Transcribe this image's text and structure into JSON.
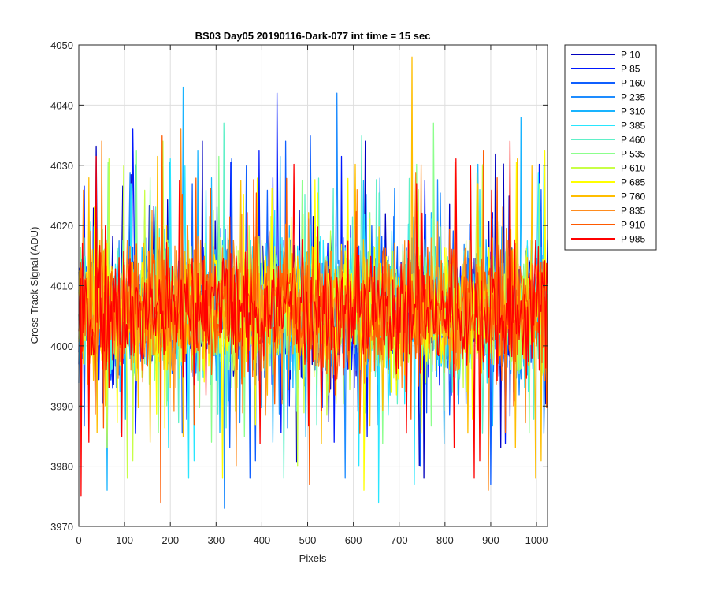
{
  "chart_data": {
    "type": "line",
    "title": "BS03 Day05 20190116-Dark-077 int time = 15 sec",
    "xlabel": "Pixels",
    "ylabel": "Cross Track Signal (ADU)",
    "xlim": [
      0,
      1024
    ],
    "ylim": [
      3970,
      4050
    ],
    "x_ticks": [
      0,
      100,
      200,
      300,
      400,
      500,
      600,
      700,
      800,
      900,
      1000
    ],
    "y_ticks": [
      3970,
      3980,
      3990,
      4000,
      4010,
      4020,
      4030,
      4040,
      4050
    ],
    "grid": true,
    "legend_position": "outside-right",
    "noise_mean": 4006,
    "series": [
      {
        "name": "P 10",
        "color": "#0000bf"
      },
      {
        "name": "P 85",
        "color": "#0017ff"
      },
      {
        "name": "P 160",
        "color": "#0f5fff"
      },
      {
        "name": "P 235",
        "color": "#1e8cff"
      },
      {
        "name": "P 310",
        "color": "#19b4ff"
      },
      {
        "name": "P 385",
        "color": "#28e6ff"
      },
      {
        "name": "P 460",
        "color": "#5ff0c8"
      },
      {
        "name": "P 535",
        "color": "#8cff8c"
      },
      {
        "name": "P 610",
        "color": "#c8ff46"
      },
      {
        "name": "P 685",
        "color": "#ffff00"
      },
      {
        "name": "P 760",
        "color": "#ffbe00"
      },
      {
        "name": "P 835",
        "color": "#ff8c1e"
      },
      {
        "name": "P 910",
        "color": "#ff5a00"
      },
      {
        "name": "P 985",
        "color": "#ff0000"
      }
    ],
    "peaks": [
      {
        "series": "P 760",
        "x": 728,
        "y": 4048
      },
      {
        "series": "P 310",
        "x": 228,
        "y": 4043
      },
      {
        "series": "P 85",
        "x": 433,
        "y": 4042
      },
      {
        "series": "P 235",
        "x": 564,
        "y": 4042
      },
      {
        "series": "P 460",
        "x": 317,
        "y": 4037
      },
      {
        "series": "P 310",
        "x": 966,
        "y": 4038
      },
      {
        "series": "P 85",
        "x": 118,
        "y": 4036
      },
      {
        "series": "P 910",
        "x": 182,
        "y": 4035
      },
      {
        "series": "P 835",
        "x": 223,
        "y": 4036
      },
      {
        "series": "P 535",
        "x": 775,
        "y": 4037
      },
      {
        "series": "P 160",
        "x": 506,
        "y": 4035
      },
      {
        "series": "P 460",
        "x": 618,
        "y": 4035
      }
    ],
    "troughs": [
      {
        "series": "P 985",
        "x": 5,
        "y": 3975
      },
      {
        "series": "P 910",
        "x": 179,
        "y": 3974
      },
      {
        "series": "P 235",
        "x": 318,
        "y": 3973
      },
      {
        "series": "P 385",
        "x": 655,
        "y": 3974
      },
      {
        "series": "P 835",
        "x": 895,
        "y": 3976
      },
      {
        "series": "P 910",
        "x": 504,
        "y": 3977
      },
      {
        "series": "P 310",
        "x": 62,
        "y": 3976
      },
      {
        "series": "P 685",
        "x": 623,
        "y": 3976
      },
      {
        "series": "P 385",
        "x": 733,
        "y": 3977
      },
      {
        "series": "P 160",
        "x": 900,
        "y": 3977
      }
    ]
  }
}
